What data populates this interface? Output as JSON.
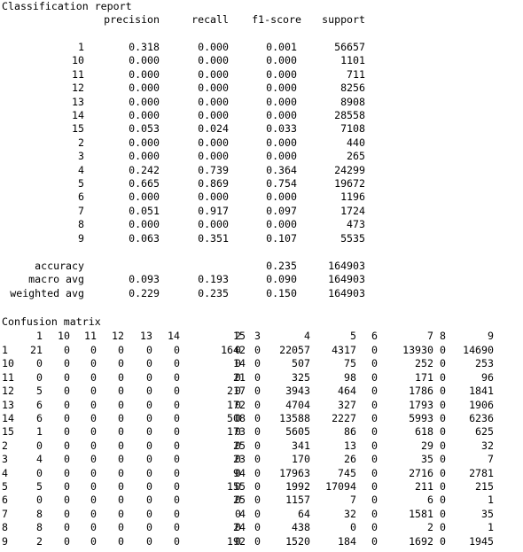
{
  "report": {
    "title": "Classification report",
    "headers": [
      "precision",
      "recall",
      "f1-score",
      "support"
    ],
    "rows": [
      [
        "1",
        "0.318",
        "0.000",
        "0.001",
        "56657"
      ],
      [
        "10",
        "0.000",
        "0.000",
        "0.000",
        "1101"
      ],
      [
        "11",
        "0.000",
        "0.000",
        "0.000",
        "711"
      ],
      [
        "12",
        "0.000",
        "0.000",
        "0.000",
        "8256"
      ],
      [
        "13",
        "0.000",
        "0.000",
        "0.000",
        "8908"
      ],
      [
        "14",
        "0.000",
        "0.000",
        "0.000",
        "28558"
      ],
      [
        "15",
        "0.053",
        "0.024",
        "0.033",
        "7108"
      ],
      [
        "2",
        "0.000",
        "0.000",
        "0.000",
        "440"
      ],
      [
        "3",
        "0.000",
        "0.000",
        "0.000",
        "265"
      ],
      [
        "4",
        "0.242",
        "0.739",
        "0.364",
        "24299"
      ],
      [
        "5",
        "0.665",
        "0.869",
        "0.754",
        "19672"
      ],
      [
        "6",
        "0.000",
        "0.000",
        "0.000",
        "1196"
      ],
      [
        "7",
        "0.051",
        "0.917",
        "0.097",
        "1724"
      ],
      [
        "8",
        "0.000",
        "0.000",
        "0.000",
        "473"
      ],
      [
        "9",
        "0.063",
        "0.351",
        "0.107",
        "5535"
      ]
    ],
    "summary": [
      [
        "accuracy",
        "",
        "",
        "0.235",
        "164903"
      ],
      [
        "macro avg",
        "0.093",
        "0.193",
        "0.090",
        "164903"
      ],
      [
        "weighted avg",
        "0.229",
        "0.235",
        "0.150",
        "164903"
      ]
    ]
  },
  "confusion": {
    "title": "Confusion matrix",
    "headers": [
      "1",
      "10",
      "11",
      "12",
      "13",
      "14",
      "15",
      "2",
      "3",
      "4",
      "5",
      "6",
      "7",
      "8",
      "9"
    ],
    "rows": [
      [
        "1",
        "21",
        "0",
        "0",
        "0",
        "0",
        "0",
        "1642",
        "0",
        "0",
        "22057",
        "4317",
        "0",
        "13930",
        "0",
        "14690"
      ],
      [
        "10",
        "0",
        "0",
        "0",
        "0",
        "0",
        "0",
        "14",
        "0",
        "0",
        "507",
        "75",
        "0",
        "252",
        "0",
        "253"
      ],
      [
        "11",
        "0",
        "0",
        "0",
        "0",
        "0",
        "0",
        "21",
        "0",
        "0",
        "325",
        "98",
        "0",
        "171",
        "0",
        "96"
      ],
      [
        "12",
        "5",
        "0",
        "0",
        "0",
        "0",
        "0",
        "217",
        "0",
        "0",
        "3943",
        "464",
        "0",
        "1786",
        "0",
        "1841"
      ],
      [
        "13",
        "6",
        "0",
        "0",
        "0",
        "0",
        "0",
        "172",
        "0",
        "0",
        "4704",
        "327",
        "0",
        "1793",
        "0",
        "1906"
      ],
      [
        "14",
        "6",
        "0",
        "0",
        "0",
        "0",
        "0",
        "508",
        "0",
        "0",
        "13588",
        "2227",
        "0",
        "5993",
        "0",
        "6236"
      ],
      [
        "15",
        "1",
        "0",
        "0",
        "0",
        "0",
        "0",
        "173",
        "0",
        "0",
        "5605",
        "86",
        "0",
        "618",
        "0",
        "625"
      ],
      [
        "2",
        "0",
        "0",
        "0",
        "0",
        "0",
        "0",
        "25",
        "0",
        "0",
        "341",
        "13",
        "0",
        "29",
        "0",
        "32"
      ],
      [
        "3",
        "4",
        "0",
        "0",
        "0",
        "0",
        "0",
        "23",
        "0",
        "0",
        "170",
        "26",
        "0",
        "35",
        "0",
        "7"
      ],
      [
        "4",
        "0",
        "0",
        "0",
        "0",
        "0",
        "0",
        "94",
        "0",
        "0",
        "17963",
        "745",
        "0",
        "2716",
        "0",
        "2781"
      ],
      [
        "5",
        "5",
        "0",
        "0",
        "0",
        "0",
        "0",
        "155",
        "0",
        "0",
        "1992",
        "17094",
        "0",
        "211",
        "0",
        "215"
      ],
      [
        "6",
        "0",
        "0",
        "0",
        "0",
        "0",
        "0",
        "25",
        "0",
        "0",
        "1157",
        "7",
        "0",
        "6",
        "0",
        "1"
      ],
      [
        "7",
        "8",
        "0",
        "0",
        "0",
        "0",
        "0",
        "4",
        "0",
        "0",
        "64",
        "32",
        "0",
        "1581",
        "0",
        "35"
      ],
      [
        "8",
        "8",
        "0",
        "0",
        "0",
        "0",
        "0",
        "24",
        "0",
        "0",
        "438",
        "0",
        "0",
        "2",
        "0",
        "1"
      ],
      [
        "9",
        "2",
        "0",
        "0",
        "0",
        "0",
        "0",
        "192",
        "0",
        "0",
        "1520",
        "184",
        "0",
        "1692",
        "0",
        "1945"
      ]
    ]
  }
}
